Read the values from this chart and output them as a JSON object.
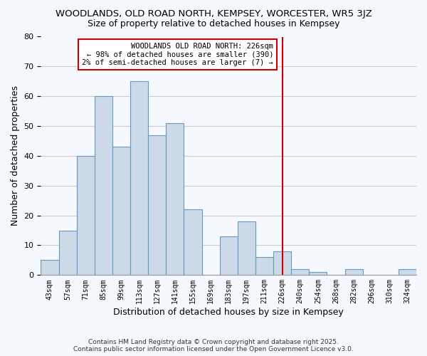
{
  "title": "WOODLANDS, OLD ROAD NORTH, KEMPSEY, WORCESTER, WR5 3JZ",
  "subtitle": "Size of property relative to detached houses in Kempsey",
  "xlabel": "Distribution of detached houses by size in Kempsey",
  "ylabel": "Number of detached properties",
  "bar_color": "#ccd9e8",
  "bar_edge_color": "#6699bb",
  "background_color": "#f5f8fc",
  "plot_bg_color": "#f5f8fc",
  "grid_color": "#cccccc",
  "categories": [
    "43sqm",
    "57sqm",
    "71sqm",
    "85sqm",
    "99sqm",
    "113sqm",
    "127sqm",
    "141sqm",
    "155sqm",
    "169sqm",
    "183sqm",
    "197sqm",
    "211sqm",
    "226sqm",
    "240sqm",
    "254sqm",
    "268sqm",
    "282sqm",
    "296sqm",
    "310sqm",
    "324sqm"
  ],
  "values": [
    5,
    15,
    40,
    60,
    43,
    65,
    47,
    51,
    22,
    0,
    13,
    18,
    6,
    8,
    2,
    1,
    0,
    2,
    0,
    0,
    2
  ],
  "ylim": [
    0,
    80
  ],
  "yticks": [
    0,
    10,
    20,
    30,
    40,
    50,
    60,
    70,
    80
  ],
  "vline_index": 13,
  "vline_color": "#cc0000",
  "annotation_title": "WOODLANDS OLD ROAD NORTH: 226sqm",
  "annotation_line1": "← 98% of detached houses are smaller (390)",
  "annotation_line2": "2% of semi-detached houses are larger (7) →",
  "annotation_box_color": "#ffffff",
  "annotation_box_edge": "#cc0000",
  "footer1": "Contains HM Land Registry data © Crown copyright and database right 2025.",
  "footer2": "Contains public sector information licensed under the Open Government Licence v3.0."
}
